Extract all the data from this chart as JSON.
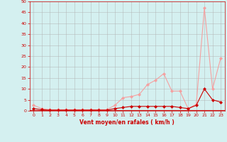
{
  "x": [
    0,
    1,
    2,
    3,
    4,
    5,
    6,
    7,
    8,
    9,
    10,
    11,
    12,
    13,
    14,
    15,
    16,
    17,
    18,
    19,
    20,
    21,
    22,
    23
  ],
  "y_light": [
    2.5,
    1.0,
    0.5,
    0.5,
    0.5,
    0.5,
    0.5,
    0.5,
    0.5,
    0.5,
    2.5,
    6.0,
    6.5,
    7.5,
    12.0,
    14.0,
    17.0,
    9.0,
    9.0,
    1.0,
    3.0,
    47.0,
    10.0,
    24.0
  ],
  "y_dark": [
    1.0,
    0.5,
    0.3,
    0.3,
    0.3,
    0.3,
    0.3,
    0.3,
    0.3,
    0.3,
    1.0,
    1.5,
    2.0,
    2.0,
    2.0,
    2.0,
    2.0,
    2.0,
    1.5,
    1.0,
    2.5,
    10.0,
    5.0,
    4.0
  ],
  "color_light": "#f5a0a0",
  "color_dark": "#cc0000",
  "marker": "D",
  "marker_size": 2,
  "background_color": "#d4f0f0",
  "grid_color": "#b0b0b0",
  "xlabel": "Vent moyen/en rafales ( km/h )",
  "xlabel_color": "#cc0000",
  "tick_color": "#cc0000",
  "ylim": [
    0,
    50
  ],
  "yticks": [
    0,
    5,
    10,
    15,
    20,
    25,
    30,
    35,
    40,
    45,
    50
  ],
  "xlim": [
    -0.5,
    23.5
  ],
  "xticks": [
    0,
    1,
    2,
    3,
    4,
    5,
    6,
    7,
    8,
    9,
    10,
    11,
    12,
    13,
    14,
    15,
    16,
    17,
    18,
    19,
    20,
    21,
    22,
    23
  ]
}
